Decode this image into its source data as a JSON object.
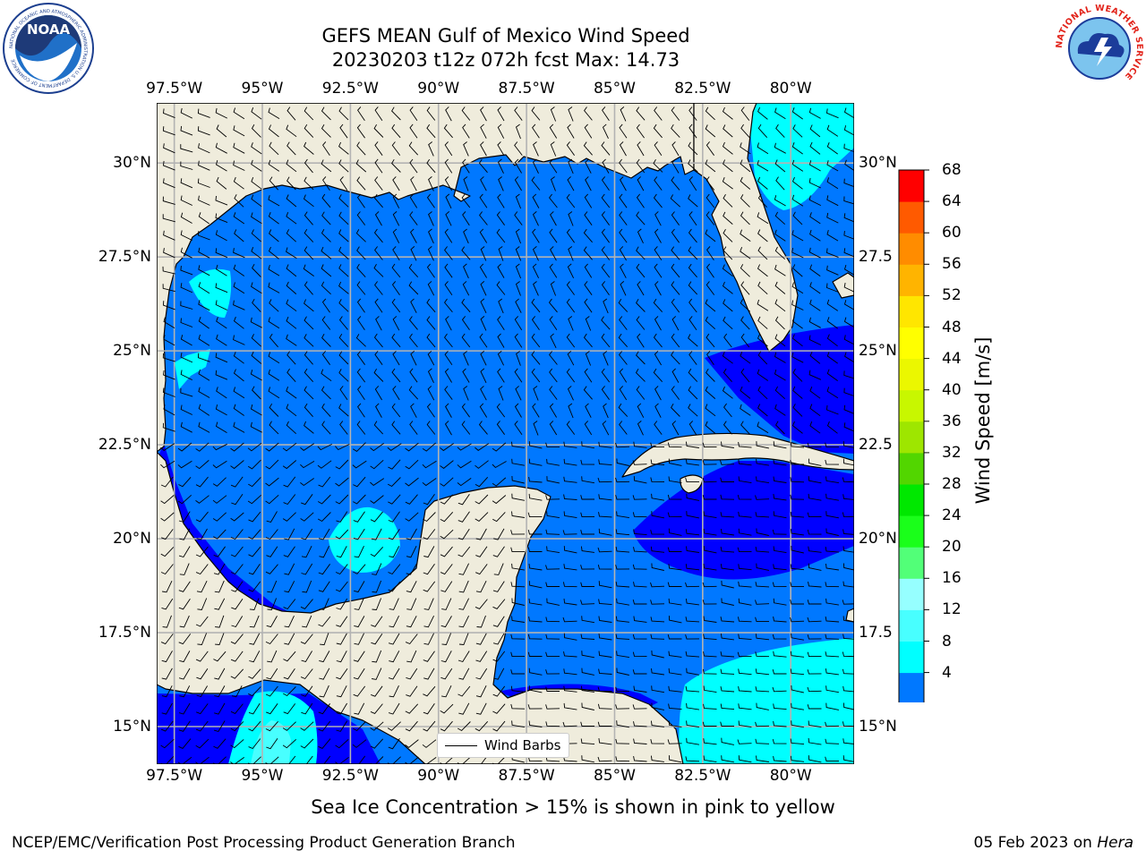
{
  "title": {
    "line1": "GEFS MEAN Gulf of Mexico Wind Speed",
    "line2": "20230203 t12z 072h fcst   Max: 14.73"
  },
  "logos": {
    "left": "noaa-logo",
    "right": "national-weather-service-logo",
    "left_text": "NATIONAL OCEANIC AND ATMOSPHERIC ADMINISTRATION  U.S. DEPARTMENT OF COMMERCE",
    "left_abbrev": "NOAA",
    "right_text": "NATIONAL WEATHER SERVICE"
  },
  "map": {
    "lon_ticks": [
      "97.5°W",
      "95°W",
      "92.5°W",
      "90°W",
      "87.5°W",
      "85°W",
      "82.5°W",
      "80°W"
    ],
    "lon_values": [
      -97.5,
      -95,
      -92.5,
      -90,
      -87.5,
      -85,
      -82.5,
      -80
    ],
    "lat_ticks": [
      "30°N",
      "27.5°N",
      "25°N",
      "22.5°N",
      "20°N",
      "17.5°N",
      "15°N"
    ],
    "lat_ticks_right": [
      "30°N",
      "27.5",
      "25°N",
      "22.5",
      "20°N",
      "17.5",
      "15°N"
    ],
    "lat_values": [
      30,
      27.5,
      25,
      22.5,
      20,
      17.5,
      15
    ],
    "lon_range": [
      -98,
      -78.2
    ],
    "lat_range": [
      14,
      31.6
    ],
    "land_color": "#efecdc",
    "grid_color": "#b3b3b3",
    "legend_label": "Wind Barbs"
  },
  "colorbar": {
    "label": "Wind Speed [m/s]",
    "ticks": [
      "68",
      "64",
      "60",
      "56",
      "52",
      "48",
      "44",
      "40",
      "36",
      "32",
      "28",
      "24",
      "20",
      "16",
      "12",
      "8",
      "4"
    ],
    "levels": [
      4,
      8,
      12,
      16,
      20,
      24,
      28,
      32,
      36,
      40,
      44,
      48,
      52,
      56,
      60,
      64,
      68
    ],
    "colors": [
      "#0078ff",
      "#00ffff",
      "#48ffff",
      "#96ffff",
      "#52ff78",
      "#1aff1a",
      "#00e800",
      "#52d600",
      "#9ee600",
      "#c8f700",
      "#ebf700",
      "#ffff00",
      "#ffe600",
      "#ffb400",
      "#ff8c00",
      "#ff5a00",
      "#ff2800",
      "#ff0000"
    ],
    "under_color": "#0000ff"
  },
  "note": "Sea Ice Concentration > 15% is shown in pink to yellow",
  "footer": {
    "left": "NCEP/EMC/Verification Post Processing Product Generation Branch",
    "right_date": "05 Feb 2023 on ",
    "right_host": "Hera"
  }
}
